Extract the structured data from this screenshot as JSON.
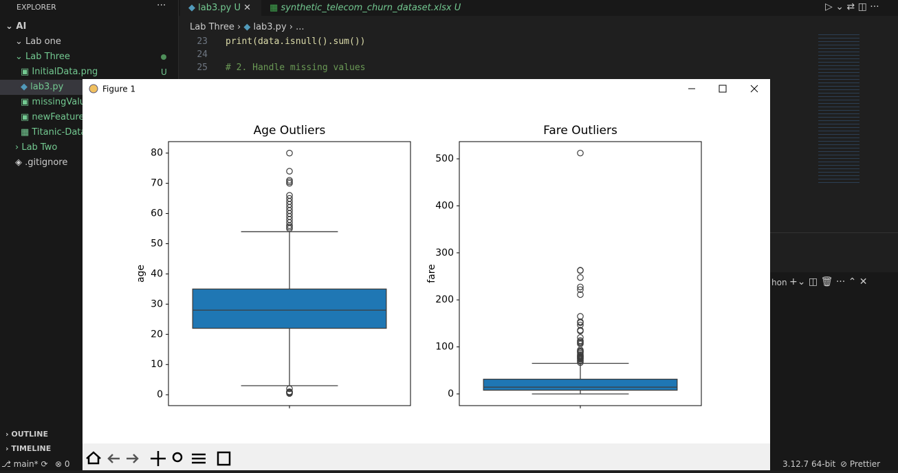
{
  "editor": {
    "explorer_title": "EXPLORER",
    "tree": [
      {
        "label": "AI"
      },
      {
        "label": "Lab one"
      },
      {
        "label": "Lab Three"
      },
      {
        "label": "InitialData.png",
        "badge": "U"
      },
      {
        "label": "lab3.py"
      },
      {
        "label": "missingValue"
      },
      {
        "label": "newFeatures."
      },
      {
        "label": "Titanic-Datas"
      },
      {
        "label": "Lab Two"
      },
      {
        "label": ".gitignore"
      }
    ],
    "outline": "OUTLINE",
    "timeline": "TIMELINE",
    "tabs": [
      {
        "label": "lab3.py",
        "badge": "U"
      },
      {
        "label": "synthetic_telecom_churn_dataset.xlsx",
        "badge": "U"
      }
    ],
    "breadcrumbs": [
      "Lab Three",
      "lab3.py",
      "..."
    ],
    "code": [
      {
        "number": 23,
        "text": "print(data.isnull().sum())"
      },
      {
        "number": 24
      },
      {
        "number": 25,
        "text": "# 2. Handle missing values"
      }
    ],
    "panel_label": "hon",
    "status": {
      "branch": "main*",
      "errors": 0,
      "python": "3.12.7 64-bit",
      "formatter": "Prettier"
    }
  },
  "figure": {
    "title": "Figure 1"
  },
  "chart_data": [
    {
      "type": "box",
      "title": "Age Outliers",
      "ylabel": "age",
      "color": "#1f77b4",
      "categories": [
        null
      ],
      "boxes": [
        {
          "whislo": 3,
          "q1": 22,
          "med": 28,
          "q3": 35,
          "whishi": 54,
          "fliers": [
            0.42,
            0.67,
            0.83,
            0.92,
            1,
            2,
            55,
            55.5,
            56,
            57,
            58,
            59,
            60,
            61,
            62,
            63,
            64,
            65,
            66,
            70,
            70.5,
            71,
            74,
            80
          ]
        }
      ],
      "ylim": [
        -3.6,
        83.8
      ],
      "yticks": [
        0,
        10,
        20,
        30,
        40,
        50,
        60,
        70,
        80
      ]
    },
    {
      "type": "box",
      "title": "Fare Outliers",
      "ylabel": "fare",
      "color": "#1f77b4",
      "categories": [
        null
      ],
      "boxes": [
        {
          "whislo": 0,
          "q1": 7.9,
          "med": 14.45,
          "q3": 31.3,
          "whishi": 65,
          "fliers": [
            66.6,
            69.55,
            71,
            73.5,
            75.25,
            76.7,
            77.9,
            79.2,
            80,
            82.2,
            83.2,
            86.5,
            89.1,
            90,
            91.1,
            93.5,
            106.4,
            108.9,
            110.9,
            113.3,
            120,
            133.7,
            135.6,
            146.5,
            151.6,
            153.5,
            164.9,
            211.3,
            221.8,
            227.5,
            247.5,
            262.4,
            263,
            512.3
          ]
        }
      ],
      "ylim": [
        -24.9,
        536.6
      ],
      "yticks": [
        0,
        100,
        200,
        300,
        400,
        500
      ]
    }
  ]
}
